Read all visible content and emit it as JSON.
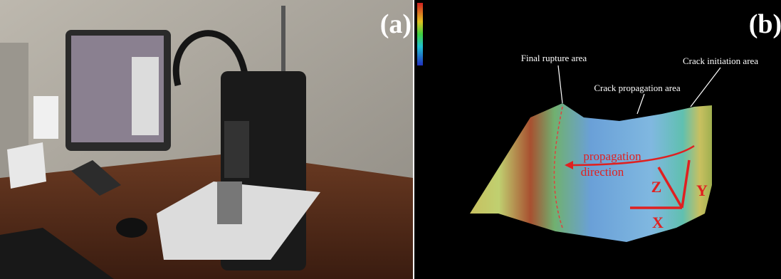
{
  "panels": [
    {
      "label": "(a)"
    },
    {
      "label": "(b)",
      "annotations": [
        "Final rupture area",
        "Crack initiation area",
        "Crack propagation area",
        "propagation",
        "direction"
      ],
      "axes": [
        "Z",
        "Y",
        "X"
      ]
    }
  ]
}
